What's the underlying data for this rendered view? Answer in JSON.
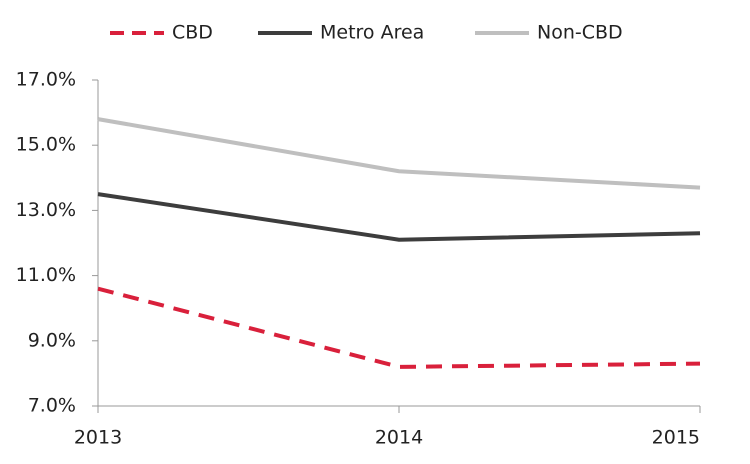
{
  "chart_data": {
    "type": "line",
    "x": [
      2013,
      2014,
      2015
    ],
    "xlim": [
      2013,
      2015
    ],
    "xticks": [
      2013,
      2014,
      2015
    ],
    "ylim": [
      7,
      17
    ],
    "yticks": [
      {
        "value": 7,
        "label": "7.0%"
      },
      {
        "value": 9,
        "label": "9.0%"
      },
      {
        "value": 11,
        "label": "11.0%"
      },
      {
        "value": 13,
        "label": "13.0%"
      },
      {
        "value": 15,
        "label": "15.0%"
      },
      {
        "value": 17,
        "label": "17.0%"
      }
    ],
    "legend": "top",
    "series": [
      {
        "name": "CBD",
        "color": "#d9203b",
        "dashed": true,
        "values": [
          10.6,
          8.2,
          8.3
        ]
      },
      {
        "name": "Metro Area",
        "color": "#3d3d3d",
        "dashed": false,
        "values": [
          13.5,
          12.1,
          12.3
        ]
      },
      {
        "name": "Non-CBD",
        "color": "#bfbfbf",
        "dashed": false,
        "values": [
          15.8,
          14.2,
          13.7
        ]
      }
    ]
  }
}
